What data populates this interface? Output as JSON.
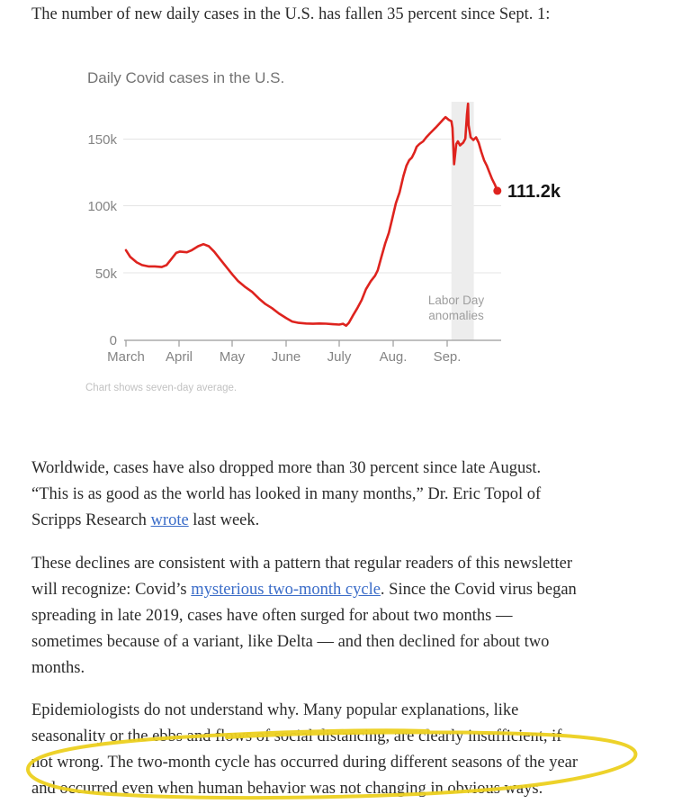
{
  "article": {
    "headline": "The number of new daily cases in the U.S. has fallen 35 percent since Sept. 1:",
    "text_color": "#2b2b2b",
    "link_color": "#3a6cc8",
    "paragraphs": [
      {
        "lines": [
          [
            {
              "text": "Worldwide, cases have also dropped more than 30 percent since late August."
            }
          ],
          [
            {
              "text": "“This is as good as the world has looked in many months,” Dr. Eric Topol of"
            }
          ],
          [
            {
              "text": "Scripps Research "
            },
            {
              "text": "wrote",
              "link": true
            },
            {
              "text": " last week."
            }
          ]
        ]
      },
      {
        "lines": [
          [
            {
              "text": "These declines are consistent with a pattern that regular readers of this newsletter"
            }
          ],
          [
            {
              "text": "will recognize: Covid’s "
            },
            {
              "text": "mysterious two-month cycle",
              "link": true
            },
            {
              "text": ". Since the Covid virus began"
            }
          ],
          [
            {
              "text": "spreading in late 2019, cases have often surged for about two months —"
            }
          ],
          [
            {
              "text": "sometimes because of a variant, like Delta — and then declined for about two"
            }
          ],
          [
            {
              "text": "months."
            }
          ]
        ]
      },
      {
        "lines": [
          [
            {
              "text": "Epidemiologists do not understand why. Many popular explanations, like"
            }
          ],
          [
            {
              "text": "seasonality or the ebbs and flows of social distancing, are clearly insufficient, if"
            }
          ],
          [
            {
              "text": "not wrong. The two-month cycle has occurred during different seasons of the year"
            }
          ],
          [
            {
              "text": "and occurred even when human behavior was not changing in obvious ways."
            }
          ]
        ]
      }
    ]
  },
  "chart_data": {
    "type": "line",
    "title": "Daily Covid cases in the U.S.",
    "note": "Chart shows seven-day average.",
    "line_color": "#de231e",
    "grid": true,
    "x_axis": {
      "ticks": [
        "March",
        "April",
        "May",
        "June",
        "July",
        "Aug.",
        "Sep."
      ],
      "unit": "month"
    },
    "y_axis": {
      "tick_labels": [
        "150k",
        "100k",
        "50k",
        "0"
      ],
      "tick_values_thousands": [
        150,
        100,
        50,
        0
      ],
      "ylim_thousands": [
        0,
        177
      ]
    },
    "annotation": {
      "lines": [
        "Labor Day",
        "anomalies"
      ],
      "band_months": [
        6.09,
        6.51
      ],
      "band_color": "#ededed"
    },
    "end_point": {
      "label": "111.2k",
      "value_thousands": 111.2
    },
    "series": [
      {
        "name": "Daily Covid cases in the U.S., seven-day average",
        "x_unit": "months since March 1",
        "y_unit": "thousands of cases",
        "points": [
          [
            0,
            67
          ],
          [
            0.08,
            62
          ],
          [
            0.2,
            58
          ],
          [
            0.3,
            56
          ],
          [
            0.42,
            55
          ],
          [
            0.54,
            55
          ],
          [
            0.67,
            54.5
          ],
          [
            0.76,
            56
          ],
          [
            0.84,
            60
          ],
          [
            0.94,
            65
          ],
          [
            1.01,
            66
          ],
          [
            1.14,
            65.5
          ],
          [
            1.23,
            67
          ],
          [
            1.35,
            70
          ],
          [
            1.45,
            71.5
          ],
          [
            1.55,
            70
          ],
          [
            1.65,
            66
          ],
          [
            1.77,
            60
          ],
          [
            1.89,
            54
          ],
          [
            1.99,
            49
          ],
          [
            2.1,
            44
          ],
          [
            2.22,
            40
          ],
          [
            2.36,
            36
          ],
          [
            2.49,
            31
          ],
          [
            2.61,
            27
          ],
          [
            2.73,
            24
          ],
          [
            2.86,
            20
          ],
          [
            3.0,
            16.5
          ],
          [
            3.11,
            14
          ],
          [
            3.23,
            13
          ],
          [
            3.37,
            12.5
          ],
          [
            3.5,
            12.3
          ],
          [
            3.62,
            12.5
          ],
          [
            3.74,
            12.4
          ],
          [
            3.87,
            12
          ],
          [
            3.99,
            11.7
          ],
          [
            4.06,
            12.3
          ],
          [
            4.12,
            10.9
          ],
          [
            4.17,
            13
          ],
          [
            4.24,
            18
          ],
          [
            4.33,
            24
          ],
          [
            4.41,
            30
          ],
          [
            4.49,
            38
          ],
          [
            4.58,
            44
          ],
          [
            4.66,
            48
          ],
          [
            4.71,
            52
          ],
          [
            4.78,
            62
          ],
          [
            4.85,
            72
          ],
          [
            4.92,
            80
          ],
          [
            4.98,
            90
          ],
          [
            5.05,
            102
          ],
          [
            5.12,
            110
          ],
          [
            5.19,
            122
          ],
          [
            5.25,
            130
          ],
          [
            5.3,
            134
          ],
          [
            5.35,
            136
          ],
          [
            5.4,
            140
          ],
          [
            5.44,
            144
          ],
          [
            5.49,
            146
          ],
          [
            5.56,
            148
          ],
          [
            5.62,
            151
          ],
          [
            5.69,
            154
          ],
          [
            5.74,
            156
          ],
          [
            5.79,
            158
          ],
          [
            5.86,
            161
          ],
          [
            5.93,
            164
          ],
          [
            5.98,
            166
          ],
          [
            6.04,
            164
          ],
          [
            6.09,
            163
          ],
          [
            6.11,
            158
          ],
          [
            6.14,
            131
          ],
          [
            6.18,
            146
          ],
          [
            6.21,
            148
          ],
          [
            6.25,
            145
          ],
          [
            6.28,
            146
          ],
          [
            6.31,
            147
          ],
          [
            6.35,
            150
          ],
          [
            6.38,
            168
          ],
          [
            6.4,
            176
          ],
          [
            6.41,
            160
          ],
          [
            6.45,
            151
          ],
          [
            6.5,
            149
          ],
          [
            6.55,
            151
          ],
          [
            6.6,
            147
          ],
          [
            6.65,
            140
          ],
          [
            6.7,
            134
          ],
          [
            6.75,
            130
          ],
          [
            6.8,
            125
          ],
          [
            6.85,
            120
          ],
          [
            6.9,
            116
          ],
          [
            6.95,
            111.2
          ]
        ]
      }
    ]
  },
  "highlight": {
    "color": "#ecd01f",
    "shape": "hand-drawn ellipse",
    "around_text": "not wrong. The two-month cycle has occurred during different seasons of the year and occurred even when human behavior was not changing in obvious ways."
  }
}
